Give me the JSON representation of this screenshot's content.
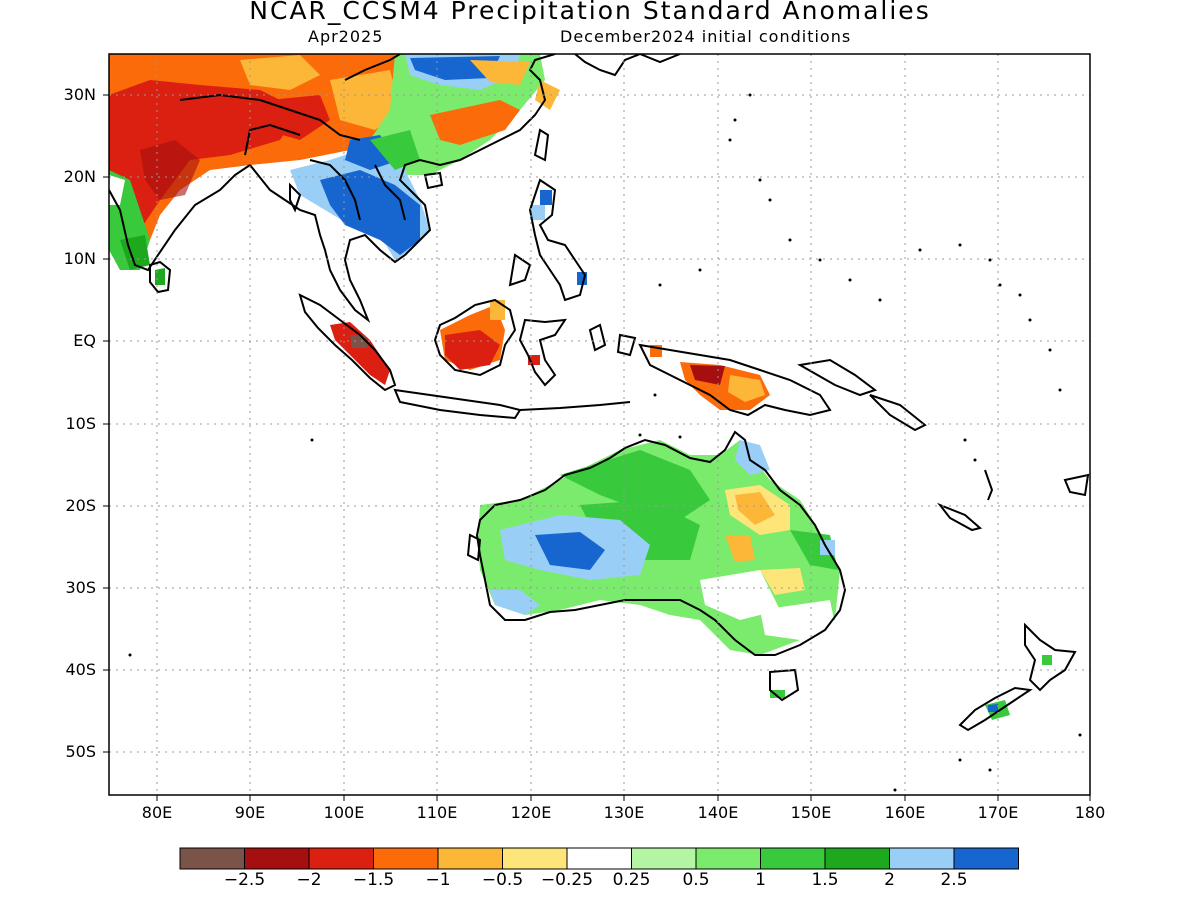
{
  "title": "NCAR_CCSM4 Precipitation Standard Anomalies",
  "subtitle_left": "Apr2025",
  "subtitle_right": "December2024 initial conditions",
  "lat_labels": [
    "30N",
    "20N",
    "10N",
    "EQ",
    "10S",
    "20S",
    "30S",
    "40S",
    "50S"
  ],
  "lon_labels": [
    "80E",
    "90E",
    "100E",
    "110E",
    "120E",
    "130E",
    "140E",
    "150E",
    "160E",
    "170E",
    "180"
  ],
  "colorbar": {
    "colors": [
      "#7a5448",
      "#a50f0f",
      "#db1f10",
      "#fb6b0a",
      "#fcb739",
      "#fde57a",
      "#ffffff",
      "#b4f5a4",
      "#7aeb6c",
      "#39c93c",
      "#1ea81e",
      "#99cff7",
      "#1766cf"
    ],
    "labels": [
      "−2.5",
      "−2",
      "−1.5",
      "−1",
      "−0.5",
      "−0.25",
      "0.25",
      "0.5",
      "1",
      "1.5",
      "2",
      "2.5"
    ]
  }
}
